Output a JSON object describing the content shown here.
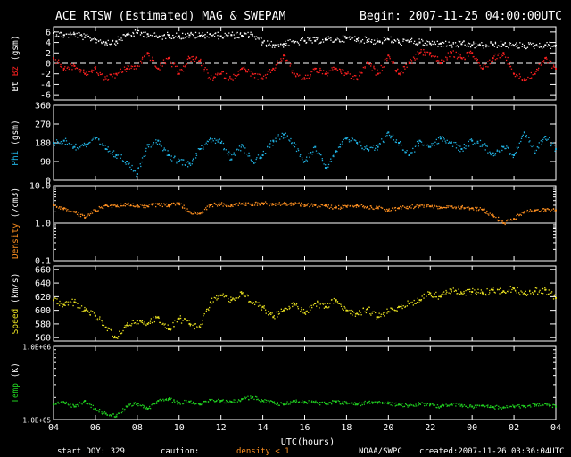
{
  "header": {
    "title": "ACE RTSW (Estimated) MAG & SWEPAM",
    "begin": "Begin: 2007-11-25 04:00:00UTC"
  },
  "footer": {
    "start_doy": "start DOY: 329",
    "caution": "caution:",
    "density_note": "density < 1",
    "source": "NOAA/SWPC",
    "created": "created:2007-11-26 03:36:04UTC"
  },
  "colors": {
    "bt": "#ffffff",
    "bz": "#ff2020",
    "phi": "#20b0e0",
    "density": "#ff9020",
    "speed": "#e8e020",
    "temp": "#20d020",
    "caution": "#ff9020"
  },
  "chart_data": {
    "type": "scatter",
    "x_axis": {
      "label": "UTC(hours)",
      "ticks": [
        "04",
        "06",
        "08",
        "10",
        "12",
        "14",
        "16",
        "18",
        "20",
        "22",
        "00",
        "02",
        "04"
      ],
      "range_hours": [
        0,
        24
      ],
      "range_utc": [
        "2007-11-25 04:00",
        "2007-11-26 04:00"
      ]
    },
    "panels": [
      {
        "id": "mag",
        "ylabel_parts": [
          {
            "text": "Bt",
            "color": "#ffffff"
          },
          {
            "text": " Bz",
            "color": "#ff2020"
          },
          {
            "text": " (gsm)",
            "color": "#ffffff"
          }
        ],
        "ylim": [
          -7,
          7
        ],
        "scale": "linear",
        "ticks": [
          [
            "6",
            6
          ],
          [
            "4",
            4
          ],
          [
            "2",
            2
          ],
          [
            "0",
            0
          ],
          [
            "-2",
            -2
          ],
          [
            "-4",
            -4
          ],
          [
            "-6",
            -6
          ]
        ],
        "dashed_zero": true,
        "series": [
          {
            "name": "Bt",
            "color": "#ffffff",
            "x": [
              0,
              0.5,
              1,
              1.5,
              2,
              2.5,
              3,
              3.5,
              4,
              4.5,
              5,
              5.5,
              6,
              6.5,
              7,
              7.5,
              8,
              8.5,
              9,
              9.5,
              10,
              10.5,
              11,
              11.5,
              12,
              12.5,
              13,
              13.5,
              14,
              14.5,
              15,
              15.5,
              16,
              16.5,
              17,
              17.5,
              18,
              18.5,
              19,
              19.5,
              20,
              20.5,
              21,
              21.5,
              22,
              22.5,
              23,
              23.5,
              24
            ],
            "y": [
              5.8,
              5.4,
              5.6,
              5.0,
              4.6,
              4.0,
              4.2,
              5.5,
              5.8,
              5.6,
              5.0,
              5.4,
              5.2,
              5.4,
              5.3,
              5.6,
              5.2,
              5.4,
              5.3,
              5.5,
              4.0,
              3.5,
              3.7,
              4.0,
              4.3,
              4.3,
              4.5,
              4.5,
              4.8,
              4.6,
              4.4,
              4.2,
              4.6,
              4.0,
              4.2,
              4.0,
              3.8,
              3.8,
              3.5,
              3.7,
              3.5,
              3.4,
              3.6,
              3.6,
              3.4,
              3.4,
              3.4,
              3.5,
              3.4
            ]
          },
          {
            "name": "Bz",
            "color": "#ff2020",
            "x": [
              0,
              0.5,
              1,
              1.5,
              2,
              2.5,
              3,
              3.5,
              4,
              4.5,
              5,
              5.5,
              6,
              6.5,
              7,
              7.5,
              8,
              8.5,
              9,
              9.5,
              10,
              10.5,
              11,
              11.5,
              12,
              12.5,
              13,
              13.5,
              14,
              14.5,
              15,
              15.5,
              16,
              16.5,
              17,
              17.5,
              18,
              18.5,
              19,
              19.5,
              20,
              20.5,
              21,
              21.5,
              22,
              22.5,
              23,
              23.5,
              24
            ],
            "y": [
              1,
              -1,
              -0.5,
              -2,
              -1,
              -3,
              -2,
              -1,
              -0.5,
              2,
              -1,
              1,
              -2,
              1,
              0.5,
              -3,
              -2,
              -3,
              -1,
              -2,
              -3,
              -1,
              1.5,
              -2,
              -3,
              -1,
              -2,
              -1,
              -2,
              -3,
              0,
              -2,
              1.5,
              -2,
              0,
              2,
              2,
              0,
              2,
              1,
              2,
              -1,
              1,
              2,
              -2,
              -3,
              -2,
              1,
              -1
            ]
          }
        ]
      },
      {
        "id": "phi",
        "ylabel_parts": [
          {
            "text": "Phi",
            "color": "#20b0e0"
          },
          {
            "text": " (gsm)",
            "color": "#ffffff"
          }
        ],
        "ylim": [
          0,
          360
        ],
        "scale": "linear",
        "ticks": [
          [
            "360",
            360
          ],
          [
            "270",
            270
          ],
          [
            "180",
            180
          ],
          [
            "90",
            90
          ],
          [
            "0",
            0
          ]
        ],
        "series": [
          {
            "name": "Phi",
            "color": "#20b0e0",
            "x": [
              0,
              0.5,
              1,
              1.5,
              2,
              2.5,
              3,
              3.5,
              4,
              4.5,
              5,
              5.5,
              6,
              6.5,
              7,
              7.5,
              8,
              8.5,
              9,
              9.5,
              10,
              10.5,
              11,
              11.5,
              12,
              12.5,
              13,
              13.5,
              14,
              14.5,
              15,
              15.5,
              16,
              16.5,
              17,
              17.5,
              18,
              18.5,
              19,
              19.5,
              20,
              20.5,
              21,
              21.5,
              22,
              22.5,
              23,
              23.5,
              24
            ],
            "y": [
              180,
              190,
              160,
              170,
              200,
              150,
              120,
              90,
              30,
              170,
              190,
              120,
              90,
              80,
              150,
              200,
              180,
              100,
              170,
              90,
              120,
              190,
              220,
              180,
              90,
              160,
              60,
              140,
              200,
              180,
              150,
              160,
              230,
              180,
              120,
              190,
              160,
              200,
              180,
              150,
              190,
              170,
              130,
              160,
              120,
              230,
              130,
              210,
              150
            ]
          }
        ]
      },
      {
        "id": "density",
        "ylabel_parts": [
          {
            "text": "Density",
            "color": "#ff9020"
          },
          {
            "text": " (/cm3)",
            "color": "#ffffff"
          }
        ],
        "ylim": [
          0.1,
          10
        ],
        "scale": "log",
        "ticks": [
          [
            "10.0",
            10
          ],
          [
            "1.0",
            1
          ],
          [
            "0.1",
            0.1
          ]
        ],
        "ref_line": 1,
        "series": [
          {
            "name": "Density",
            "color": "#ff9020",
            "x": [
              0,
              0.5,
              1,
              1.5,
              2,
              2.5,
              3,
              3.5,
              4,
              4.5,
              5,
              5.5,
              6,
              6.5,
              7,
              7.5,
              8,
              8.5,
              9,
              9.5,
              10,
              10.5,
              11,
              11.5,
              12,
              12.5,
              13,
              13.5,
              14,
              14.5,
              15,
              15.5,
              16,
              16.5,
              17,
              17.5,
              18,
              18.5,
              19,
              19.5,
              20,
              20.5,
              21,
              21.5,
              22,
              22.5,
              23,
              23.5,
              24
            ],
            "y": [
              3,
              2.5,
              2,
              1.4,
              2.2,
              3,
              2.8,
              3.2,
              3,
              2.8,
              3.2,
              3,
              3.4,
              2,
              1.8,
              3,
              3.2,
              3,
              3.3,
              3.2,
              3.4,
              3.2,
              3.3,
              3.2,
              3.1,
              3,
              2.9,
              2.6,
              2.8,
              3,
              2.7,
              2.6,
              2.2,
              2.5,
              2.7,
              2.9,
              2.8,
              2.6,
              2.8,
              2.7,
              2.5,
              2.3,
              1.6,
              1,
              1.3,
              2,
              2.2,
              2.3,
              2.2
            ]
          }
        ]
      },
      {
        "id": "speed",
        "ylabel_parts": [
          {
            "text": "Speed",
            "color": "#e8e020"
          },
          {
            "text": " (km/s)",
            "color": "#ffffff"
          }
        ],
        "ylim": [
          555,
          665
        ],
        "scale": "linear",
        "ticks": [
          [
            "660",
            660
          ],
          [
            "640",
            640
          ],
          [
            "620",
            620
          ],
          [
            "600",
            600
          ],
          [
            "580",
            580
          ],
          [
            "560",
            560
          ]
        ],
        "series": [
          {
            "name": "Speed",
            "color": "#e8e020",
            "x": [
              0,
              0.5,
              1,
              1.5,
              2,
              2.5,
              3,
              3.5,
              4,
              4.5,
              5,
              5.5,
              6,
              6.5,
              7,
              7.5,
              8,
              8.5,
              9,
              9.5,
              10,
              10.5,
              11,
              11.5,
              12,
              12.5,
              13,
              13.5,
              14,
              14.5,
              15,
              15.5,
              16,
              16.5,
              17,
              17.5,
              18,
              18.5,
              19,
              19.5,
              20,
              20.5,
              21,
              21.5,
              22,
              22.5,
              23,
              23.5,
              24
            ],
            "y": [
              615,
              608,
              612,
              600,
              592,
              575,
              560,
              578,
              585,
              580,
              590,
              572,
              588,
              580,
              575,
              612,
              622,
              615,
              625,
              610,
              605,
              590,
              600,
              608,
              596,
              610,
              605,
              615,
              600,
              595,
              602,
              590,
              598,
              605,
              610,
              615,
              625,
              620,
              630,
              625,
              627,
              625,
              630,
              628,
              632,
              625,
              628,
              630,
              618
            ]
          }
        ]
      },
      {
        "id": "temp",
        "ylabel_parts": [
          {
            "text": "Temp",
            "color": "#20d020"
          },
          {
            "text": " (K)",
            "color": "#ffffff"
          }
        ],
        "ylim": [
          100000,
          1000000
        ],
        "scale": "log",
        "ticks": [
          [
            "1.0E+06",
            1000000
          ],
          [
            "1.0E+05",
            100000
          ]
        ],
        "series": [
          {
            "name": "Temp",
            "color": "#20d020",
            "x": [
              0,
              0.5,
              1,
              1.5,
              2,
              2.5,
              3,
              3.5,
              4,
              4.5,
              5,
              5.5,
              6,
              6.5,
              7,
              7.5,
              8,
              8.5,
              9,
              9.5,
              10,
              10.5,
              11,
              11.5,
              12,
              12.5,
              13,
              13.5,
              14,
              14.5,
              15,
              15.5,
              16,
              16.5,
              17,
              17.5,
              18,
              18.5,
              19,
              19.5,
              20,
              20.5,
              21,
              21.5,
              22,
              22.5,
              23,
              23.5,
              24
            ],
            "y": [
              160000,
              170000,
              150000,
              180000,
              140000,
              120000,
              110000,
              150000,
              165000,
              140000,
              180000,
              190000,
              170000,
              175000,
              160000,
              185000,
              180000,
              175000,
              190000,
              200000,
              180000,
              170000,
              160000,
              180000,
              175000,
              170000,
              165000,
              175000,
              168000,
              160000,
              170000,
              172000,
              165000,
              160000,
              155000,
              165000,
              160000,
              150000,
              160000,
              158000,
              150000,
              155000,
              148000,
              145000,
              150000,
              152000,
              160000,
              165000,
              150000
            ]
          }
        ]
      }
    ]
  }
}
